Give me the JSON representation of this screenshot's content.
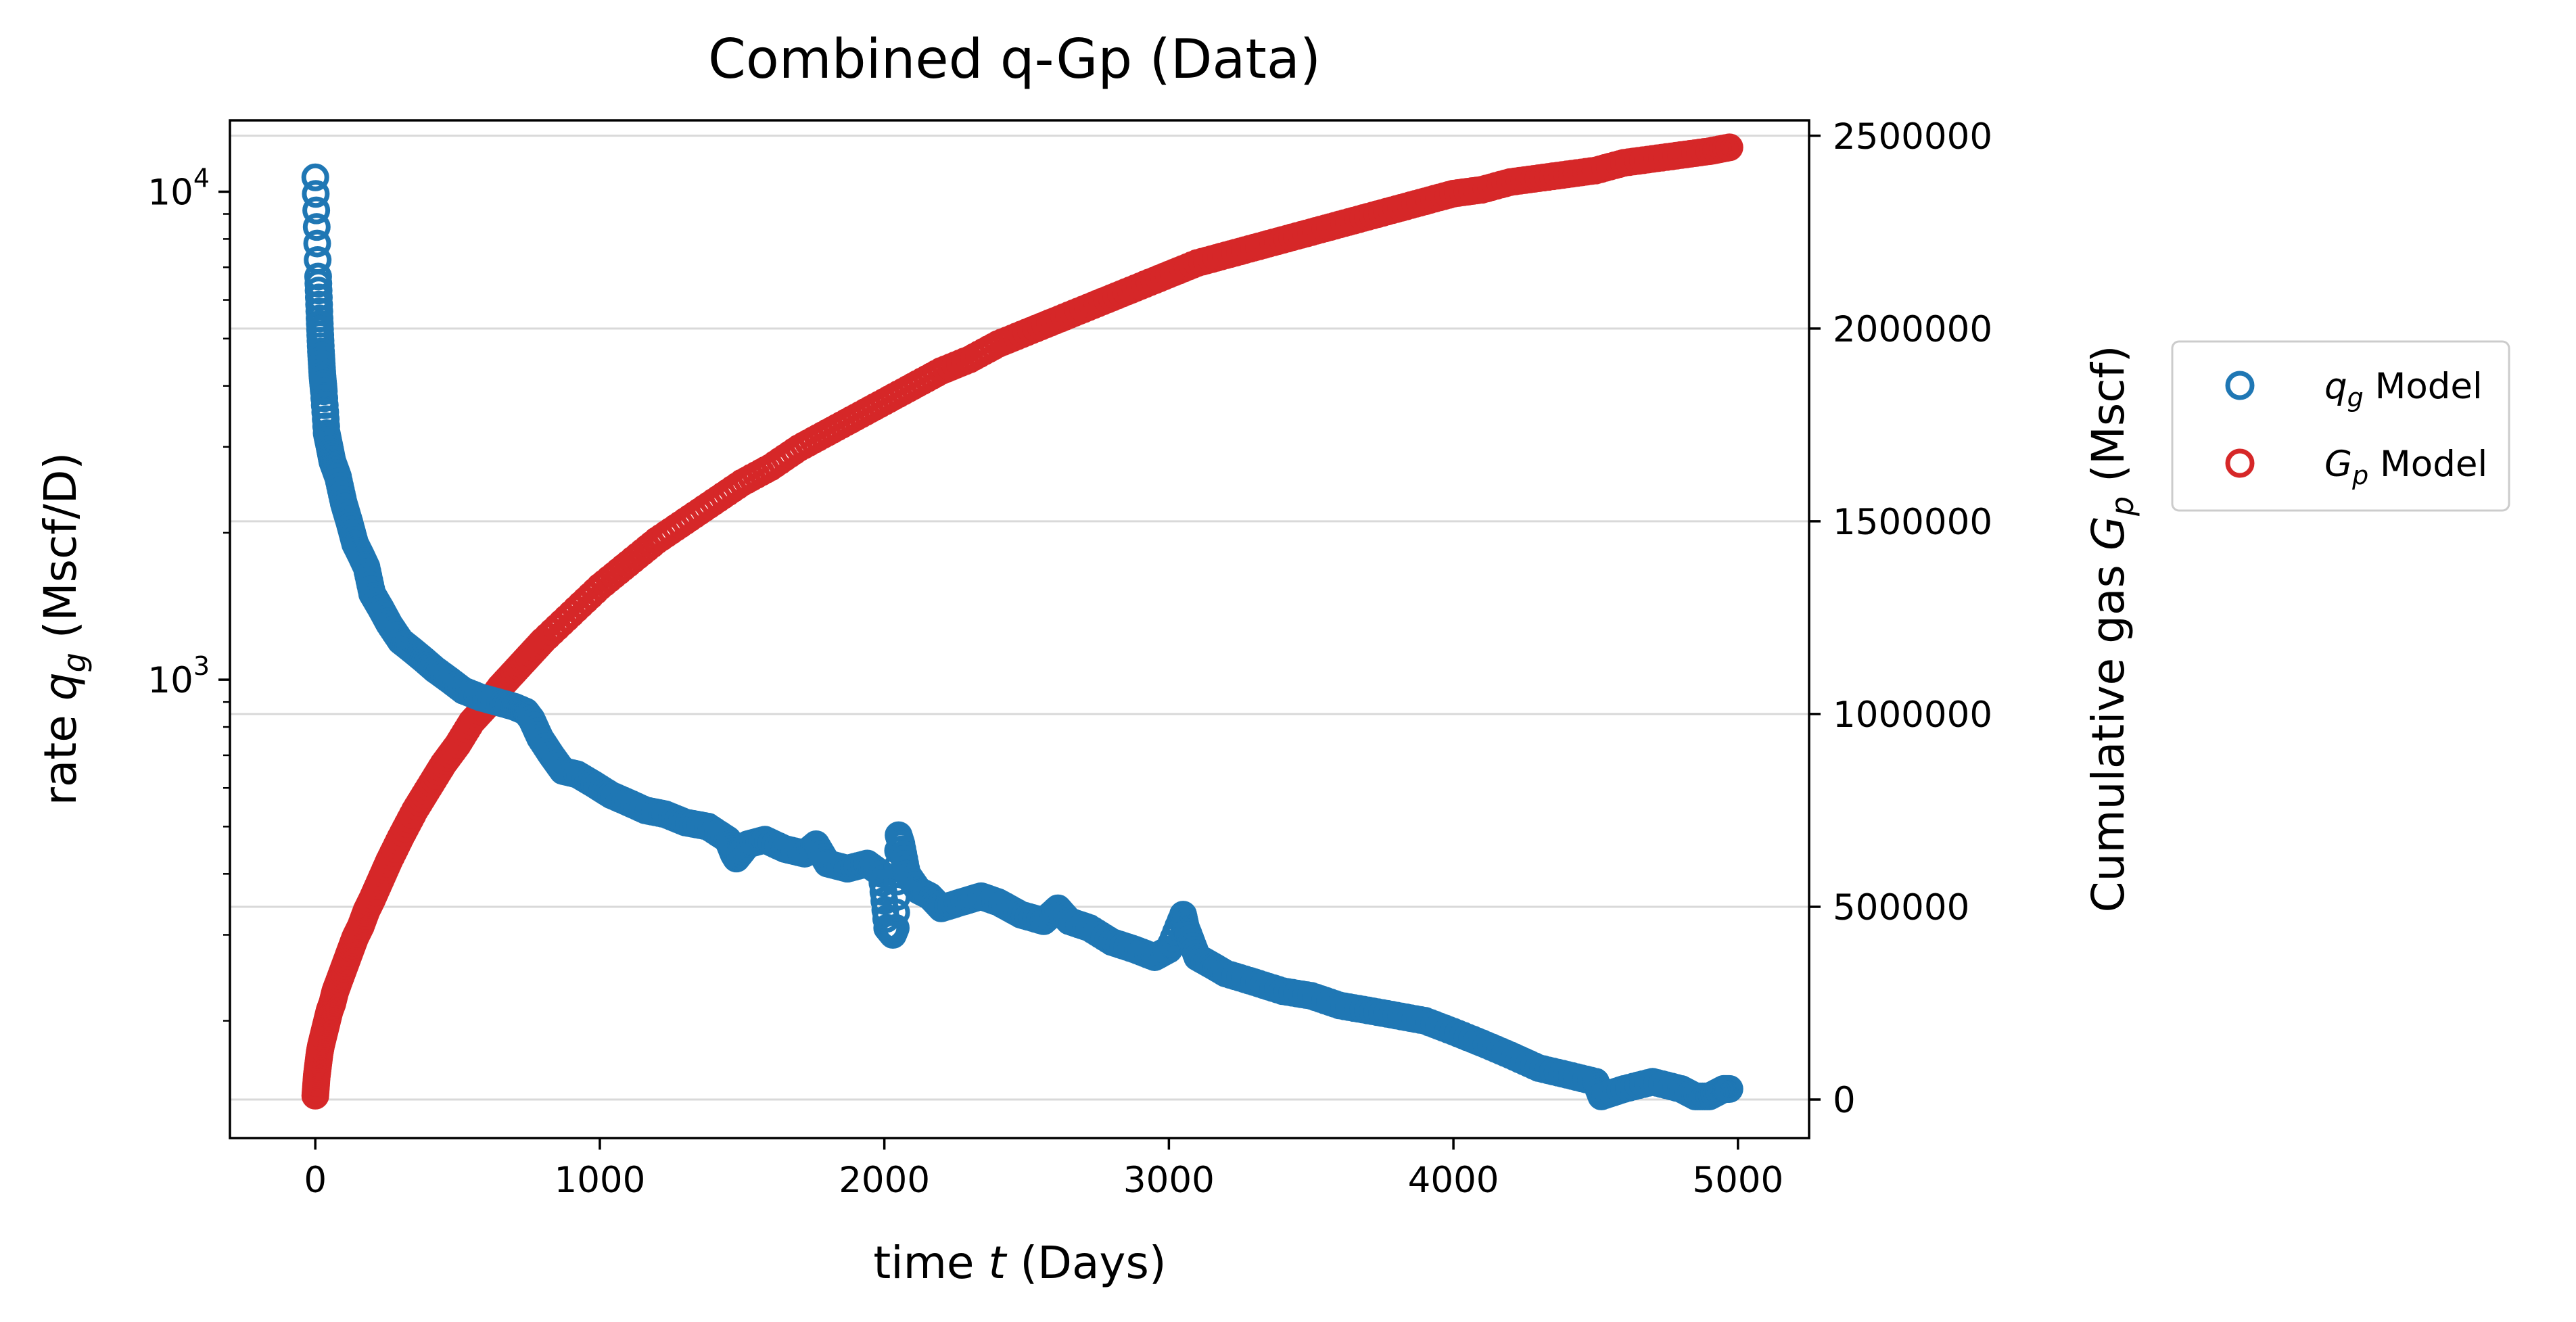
{
  "colors": {
    "qg": "#1f77b4",
    "gp": "#d62728",
    "grid": "#d9d9d9"
  },
  "chart_data": {
    "type": "scatter",
    "title": "Combined q-Gp (Data)",
    "xlabel": "time t (Days)",
    "ylabel_left": "rate q_g (Mscf/D)",
    "ylabel_right": "Cumulative gas G_p (Mscf)",
    "xlim": [
      -300,
      5250
    ],
    "ylim_left": [
      115,
      14000
    ],
    "yscale_left": "log",
    "ylim_right": [
      -100000,
      2540000
    ],
    "x_ticks": [
      "0",
      "1000",
      "2000",
      "3000",
      "4000",
      "5000"
    ],
    "y_left_ticks": [
      {
        "base": "10",
        "exp": "3",
        "value": 1000
      },
      {
        "base": "10",
        "exp": "4",
        "value": 10000
      }
    ],
    "y_right_ticks": [
      "0",
      "500000",
      "1000000",
      "1500000",
      "2000000",
      "2500000"
    ],
    "grid": "horizontal, right axis",
    "legend": {
      "placement": "outside-right",
      "entries": [
        {
          "key": "qg",
          "sym": "q",
          "sub": "g",
          "rest": " Model"
        },
        {
          "key": "gp",
          "sym": "G",
          "sub": "p",
          "rest": " Model"
        }
      ]
    },
    "series": [
      {
        "key": "qg",
        "axis": "left",
        "marker": "hollow-circle",
        "name": "q_g Model",
        "x": [
          0,
          10,
          15,
          20,
          25,
          30,
          40,
          50,
          60,
          70,
          80,
          100,
          120,
          140,
          160,
          180,
          200,
          230,
          260,
          300,
          340,
          380,
          420,
          470,
          520,
          580,
          640,
          700,
          740,
          760,
          790,
          830,
          870,
          920,
          980,
          1040,
          1100,
          1160,
          1230,
          1300,
          1380,
          1450,
          1470,
          1480,
          1520,
          1580,
          1650,
          1720,
          1760,
          1800,
          1870,
          1940,
          1990,
          2010,
          2030,
          2040,
          2050,
          2060,
          2080,
          2120,
          2160,
          2200,
          2270,
          2340,
          2400,
          2480,
          2560,
          2610,
          2650,
          2720,
          2800,
          2880,
          2950,
          3000,
          3050,
          3060,
          3070,
          3100,
          3150,
          3200,
          3300,
          3400,
          3500,
          3600,
          3700,
          3800,
          3900,
          4000,
          4100,
          4200,
          4300,
          4400,
          4500,
          4520,
          4600,
          4700,
          4800,
          4850,
          4900,
          4950,
          4970
        ],
        "y": [
          10700,
          6700,
          5500,
          4700,
          4200,
          3900,
          3200,
          3000,
          2800,
          2700,
          2600,
          2300,
          2100,
          1900,
          1800,
          1700,
          1500,
          1400,
          1300,
          1200,
          1150,
          1100,
          1050,
          1000,
          950,
          920,
          900,
          880,
          860,
          830,
          760,
          700,
          650,
          640,
          610,
          580,
          560,
          540,
          530,
          510,
          500,
          470,
          440,
          430,
          460,
          470,
          450,
          440,
          460,
          420,
          410,
          420,
          400,
          310,
          300,
          310,
          480,
          460,
          400,
          370,
          360,
          340,
          350,
          360,
          350,
          330,
          320,
          340,
          320,
          310,
          290,
          280,
          270,
          280,
          330,
          310,
          300,
          270,
          260,
          250,
          240,
          230,
          225,
          215,
          210,
          205,
          200,
          190,
          180,
          170,
          160,
          155,
          150,
          140,
          145,
          150,
          145,
          140,
          140,
          145,
          145
        ]
      },
      {
        "key": "gp",
        "axis": "right",
        "marker": "hollow-circle",
        "name": "G_p Model",
        "x": [
          0,
          5,
          10,
          15,
          20,
          30,
          40,
          50,
          60,
          70,
          80,
          100,
          120,
          140,
          160,
          180,
          200,
          230,
          260,
          300,
          350,
          400,
          450,
          500,
          550,
          600,
          650,
          700,
          750,
          800,
          900,
          1000,
          1100,
          1200,
          1300,
          1400,
          1500,
          1600,
          1700,
          1800,
          1900,
          2000,
          2100,
          2200,
          2300,
          2400,
          2500,
          2600,
          2700,
          2800,
          2900,
          3000,
          3100,
          3200,
          3300,
          3400,
          3500,
          3600,
          3700,
          3800,
          3900,
          4000,
          4100,
          4200,
          4300,
          4400,
          4500,
          4600,
          4700,
          4800,
          4900,
          4970
        ],
        "y": [
          10000,
          60000,
          90000,
          120000,
          140000,
          170000,
          200000,
          230000,
          250000,
          280000,
          300000,
          340000,
          380000,
          420000,
          450000,
          490000,
          520000,
          570000,
          620000,
          680000,
          750000,
          810000,
          870000,
          920000,
          980000,
          1020000,
          1070000,
          1110000,
          1150000,
          1190000,
          1260000,
          1330000,
          1390000,
          1450000,
          1500000,
          1550000,
          1600000,
          1640000,
          1690000,
          1730000,
          1770000,
          1810000,
          1850000,
          1890000,
          1920000,
          1960000,
          1990000,
          2020000,
          2050000,
          2080000,
          2110000,
          2140000,
          2170000,
          2190000,
          2210000,
          2230000,
          2250000,
          2270000,
          2290000,
          2310000,
          2330000,
          2350000,
          2360000,
          2380000,
          2390000,
          2400000,
          2410000,
          2430000,
          2440000,
          2450000,
          2460000,
          2470000
        ]
      }
    ]
  }
}
